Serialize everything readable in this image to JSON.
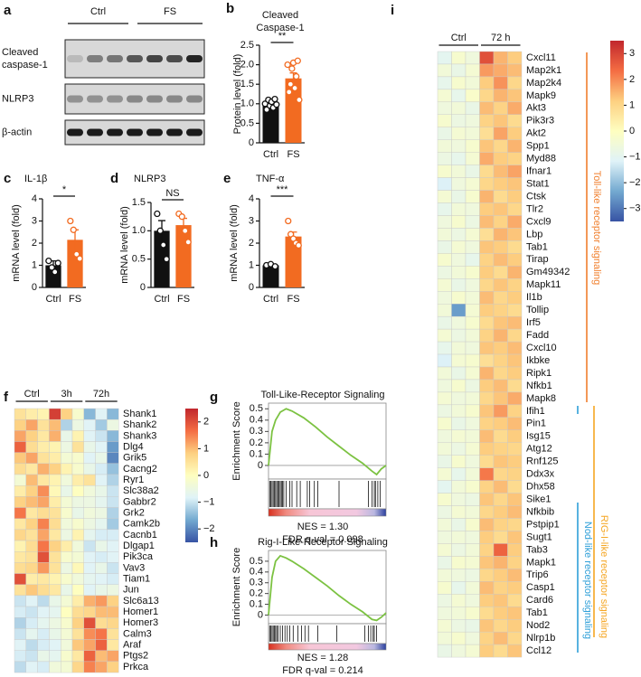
{
  "blot": {
    "label": "a",
    "groups": [
      "Ctrl",
      "FS"
    ],
    "rows": [
      [
        "Cleaved",
        "caspase-1"
      ],
      [
        "NLRP3"
      ],
      [
        "β-actin"
      ]
    ]
  },
  "chart_data": [
    {
      "type": "bar",
      "label": "b",
      "title": [
        "Cleaved",
        "Caspase-1"
      ],
      "ylabel": "Protein level (fold)",
      "categories": [
        "Ctrl",
        "FS"
      ],
      "values": [
        1.0,
        1.65
      ],
      "errors": [
        0.06,
        0.14
      ],
      "colors": [
        "#111111",
        "#f26b21"
      ],
      "points": [
        [
          1.0,
          0.85,
          1.1,
          0.95,
          1.05,
          0.9,
          1.12,
          0.98
        ],
        [
          2.0,
          1.3,
          1.5,
          1.9,
          2.05,
          1.4,
          1.7,
          2.1,
          1.1
        ]
      ],
      "ylim": [
        0,
        2.5
      ],
      "yticks": [
        0,
        0.5,
        {
          "value": 1,
          "label": "1.0"
        },
        1.5,
        {
          "value": 2,
          "label": "2.0"
        },
        2.5
      ],
      "significance": "**"
    },
    {
      "type": "bar",
      "label": "c",
      "title": [
        "IL-1β"
      ],
      "ylabel": "mRNA level (fold)",
      "categories": [
        "Ctrl",
        "FS"
      ],
      "values": [
        1.0,
        2.15
      ],
      "errors": [
        0.2,
        0.45
      ],
      "colors": [
        "#111111",
        "#f26b21"
      ],
      "points": [
        [
          1.2,
          0.9,
          0.7,
          1.1
        ],
        [
          3.0,
          2.6,
          1.5,
          1.3
        ]
      ],
      "ylim": [
        0,
        4
      ],
      "yticks": [
        0,
        1,
        2,
        3,
        4
      ],
      "significance": "*"
    },
    {
      "type": "bar",
      "label": "d",
      "title": [
        "NLRP3"
      ],
      "ylabel": "mRNA level (fold)",
      "categories": [
        "Ctrl",
        "FS"
      ],
      "values": [
        1.0,
        1.1
      ],
      "errors": [
        0.18,
        0.12
      ],
      "colors": [
        "#111111",
        "#f26b21"
      ],
      "points": [
        [
          1.3,
          1.0,
          0.75,
          0.5
        ],
        [
          1.3,
          1.25,
          1.0,
          0.8
        ]
      ],
      "ylim": [
        0,
        1.5
      ],
      "yticks": [
        0,
        0.5,
        {
          "value": 1,
          "label": "1.0"
        },
        1.5
      ],
      "significance": "NS"
    },
    {
      "type": "bar",
      "label": "e",
      "title": [
        "TNF-α"
      ],
      "ylabel": "mRNA level (fold)",
      "categories": [
        "Ctrl",
        "FS"
      ],
      "values": [
        1.0,
        2.3
      ],
      "errors": [
        0.05,
        0.2
      ],
      "colors": [
        "#111111",
        "#f26b21"
      ],
      "points": [
        [
          1.0,
          1.05,
          0.95
        ],
        [
          3.0,
          2.4,
          2.2,
          2.0,
          1.9
        ]
      ],
      "ylim": [
        0,
        4
      ],
      "yticks": [
        0,
        1,
        2,
        3,
        4
      ],
      "significance": "***"
    },
    {
      "type": "heatmap",
      "label": "f",
      "groups": [
        {
          "name": "Ctrl",
          "n": 3
        },
        {
          "name": "3h",
          "n": 3
        },
        {
          "name": "72h",
          "n": 3
        }
      ],
      "rows": [
        "Shank1",
        "Shank2",
        "Shank3",
        "Dlg4",
        "Grik5",
        "Cacng2",
        "Ryr1",
        "Slc38a2",
        "Gabbr2",
        "Grk2",
        "Camk2b",
        "Cacnb1",
        "Dlgap1",
        "Pik3ca",
        "Vav3",
        "Tiam1",
        "Jun",
        "Slc6a13",
        "Homer1",
        "Homer3",
        "Calm3",
        "Araf",
        "Ptgs2",
        "Prkca"
      ],
      "values": [
        [
          0.5,
          0.3,
          0.2,
          2.2,
          0.8,
          -0.2,
          -1.5,
          -0.8,
          -1.5
        ],
        [
          0.8,
          1.2,
          0.5,
          1.0,
          -1.2,
          -0.5,
          -0.8,
          -1.3,
          -0.5
        ],
        [
          1.2,
          0.8,
          0.4,
          1.1,
          -0.6,
          0.2,
          -0.8,
          -1.0,
          -1.5
        ],
        [
          1.8,
          0.6,
          0.3,
          0.2,
          -0.5,
          0.5,
          -0.6,
          -0.8,
          -1.8
        ],
        [
          0.9,
          1.2,
          0.5,
          0.3,
          -0.3,
          -0.2,
          -0.8,
          -0.6,
          -2.0
        ],
        [
          0.6,
          0.4,
          1.1,
          0.8,
          0.2,
          -0.2,
          -0.6,
          -0.9,
          -1.4
        ],
        [
          -0.3,
          1.0,
          0.4,
          0.2,
          -0.4,
          0.3,
          0.5,
          -0.8,
          -1.2
        ],
        [
          0.3,
          0.8,
          1.4,
          0.1,
          -0.6,
          0.0,
          -0.4,
          -0.6,
          -1.0
        ],
        [
          0.8,
          1.0,
          1.2,
          0.3,
          -0.3,
          -0.5,
          -0.5,
          -0.7,
          -1.0
        ],
        [
          1.6,
          0.4,
          0.6,
          0.5,
          -0.2,
          -0.6,
          -0.4,
          -0.5,
          -1.2
        ],
        [
          0.4,
          0.8,
          1.5,
          0.6,
          -0.4,
          -0.2,
          -0.5,
          -0.7,
          -1.3
        ],
        [
          0.7,
          0.5,
          1.2,
          0.4,
          -0.5,
          0.2,
          -0.7,
          -0.9,
          -0.9
        ],
        [
          0.2,
          0.6,
          1.6,
          0.8,
          0.3,
          -0.4,
          -1.0,
          -0.6,
          -0.8
        ],
        [
          0.4,
          0.5,
          2.0,
          0.5,
          -0.2,
          -0.3,
          -0.8,
          -0.9,
          -0.8
        ],
        [
          0.6,
          0.7,
          1.3,
          0.5,
          -0.5,
          0.1,
          -0.8,
          -0.6,
          -1.0
        ],
        [
          2.0,
          0.3,
          0.4,
          0.2,
          -0.2,
          -0.4,
          -0.7,
          -0.8,
          -0.9
        ],
        [
          0.5,
          0.9,
          0.6,
          0.4,
          -0.6,
          0.0,
          -0.8,
          -0.6,
          -0.5
        ],
        [
          -1.0,
          -0.8,
          -1.1,
          -0.6,
          -0.3,
          0.3,
          1.1,
          1.3,
          0.8
        ],
        [
          -0.9,
          -1.0,
          -0.8,
          -0.7,
          0.0,
          0.6,
          0.7,
          1.0,
          1.0
        ],
        [
          -1.2,
          -0.9,
          -0.7,
          -0.5,
          -0.2,
          0.8,
          2.0,
          0.6,
          0.7
        ],
        [
          -1.0,
          -0.7,
          -0.9,
          -0.6,
          -0.3,
          0.5,
          1.4,
          1.6,
          0.5
        ],
        [
          -0.8,
          -1.1,
          -0.9,
          -0.8,
          -0.4,
          0.9,
          1.2,
          1.8,
          0.4
        ],
        [
          -0.9,
          -1.0,
          -0.6,
          -0.7,
          -0.2,
          0.4,
          1.8,
          1.0,
          1.2
        ],
        [
          -1.1,
          -0.8,
          -0.9,
          -0.4,
          -0.3,
          0.7,
          1.5,
          1.2,
          0.8
        ]
      ],
      "clim": [
        -2.5,
        2.5
      ],
      "cticks": [
        2,
        1,
        0,
        {
          "value": -1,
          "label": "−1"
        },
        {
          "value": -2,
          "label": "−2"
        }
      ],
      "colormap": [
        "#3753a4",
        "#73a9d0",
        "#e0f3f8",
        "#fefec0",
        "#fdd081",
        "#f46d43",
        "#c1272d"
      ]
    },
    {
      "type": "gsea",
      "label": "g",
      "title": "Toll-Like-Receptor Signaling",
      "ylabel": "Enrichment Score",
      "x": [
        0,
        3,
        6,
        10,
        15,
        20,
        30,
        40,
        50,
        60,
        70,
        80,
        88,
        92,
        96,
        100
      ],
      "y": [
        0,
        0.3,
        0.4,
        0.47,
        0.5,
        0.48,
        0.42,
        0.34,
        0.25,
        0.17,
        0.09,
        0.02,
        -0.05,
        -0.08,
        -0.03,
        0.0
      ],
      "hits": [
        1,
        2,
        3,
        4,
        5,
        6,
        7,
        8,
        9,
        10,
        11,
        12,
        13,
        15,
        18,
        20,
        24,
        27,
        33,
        35,
        39,
        42,
        60,
        85,
        88,
        90,
        91,
        93,
        95
      ],
      "xlim": [
        0,
        100
      ],
      "ylim": [
        -0.12,
        0.55
      ],
      "yticks": [
        0,
        0.1,
        0.2,
        0.3,
        0.4,
        0.5
      ],
      "color": "#7cc242",
      "annotations": [
        "NES = 1.30",
        "FDR q-val = 0.098"
      ]
    },
    {
      "type": "gsea",
      "label": "h",
      "title": "Rig-I-Like-Receptor Signaling",
      "ylabel": "Enrichment Score",
      "x": [
        0,
        3,
        6,
        10,
        15,
        20,
        30,
        40,
        50,
        60,
        70,
        80,
        88,
        92,
        96,
        100
      ],
      "y": [
        0,
        0.35,
        0.5,
        0.55,
        0.53,
        0.5,
        0.43,
        0.35,
        0.27,
        0.18,
        0.1,
        0.03,
        -0.04,
        -0.05,
        -0.02,
        0.02
      ],
      "hits": [
        1,
        2,
        3,
        4,
        5,
        6,
        7,
        8,
        10,
        12,
        14,
        16,
        18,
        21,
        25,
        28,
        31,
        34,
        42,
        58,
        82,
        85,
        87,
        89,
        90,
        92
      ],
      "xlim": [
        0,
        100
      ],
      "ylim": [
        -0.08,
        0.6
      ],
      "yticks": [
        0,
        0.1,
        0.2,
        0.3,
        0.4,
        0.5
      ],
      "color": "#7cc242",
      "annotations": [
        "NES = 1.28",
        "FDR q-val = 0.214"
      ]
    },
    {
      "type": "heatmap",
      "label": "i",
      "groups": [
        {
          "name": "Ctrl",
          "n": 3
        },
        {
          "name": "72 h",
          "n": 3
        }
      ],
      "rows": [
        "Cxcl11",
        "Map2k1",
        "Map2k4",
        "Mapk9",
        "Akt3",
        "Pik3r3",
        "Akt2",
        "Spp1",
        "Myd88",
        "Ifnar1",
        "Stat1",
        "Ctsk",
        "Tlr2",
        "Cxcl9",
        "Lbp",
        "Tab1",
        "Tirap",
        "Gm49342",
        "Mapk11",
        "Il1b",
        "Tollip",
        "Irf5",
        "Fadd",
        "Cxcl10",
        "Ikbke",
        "Ripk1",
        "Nfkb1",
        "Mapk8",
        "Ifih1",
        "Pin1",
        "Isg15",
        "Atg12",
        "Rnf125",
        "Ddx3x",
        "Dhx58",
        "Sike1",
        "Nfkbib",
        "Pstpip1",
        "Sugt1",
        "Tab3",
        "Mapk1",
        "Trip6",
        "Casp1",
        "Card6",
        "Tab1",
        "Nod2",
        "Nlrp1b",
        "Ccl12"
      ],
      "values": [
        [
          -1.0,
          -0.3,
          -0.6,
          2.8,
          1.5,
          1.2
        ],
        [
          -0.5,
          -0.8,
          -0.4,
          1.8,
          1.6,
          1.4
        ],
        [
          -0.9,
          -0.3,
          -0.5,
          1.2,
          1.9,
          1.0
        ],
        [
          -0.4,
          -0.9,
          -0.2,
          1.0,
          1.5,
          1.3
        ],
        [
          -0.6,
          -0.5,
          -0.8,
          1.4,
          1.1,
          1.6
        ],
        [
          -0.3,
          -0.7,
          -0.6,
          1.1,
          1.3,
          0.9
        ],
        [
          -0.8,
          -0.4,
          -0.5,
          0.8,
          1.7,
          1.2
        ],
        [
          -0.5,
          -0.6,
          -0.3,
          1.3,
          1.0,
          1.5
        ],
        [
          -0.7,
          -0.9,
          -0.4,
          1.6,
          1.2,
          1.1
        ],
        [
          -0.3,
          -0.5,
          -0.8,
          0.9,
          1.4,
          1.7
        ],
        [
          -1.2,
          -0.6,
          -0.4,
          1.0,
          1.2,
          1.3
        ],
        [
          -0.4,
          -0.8,
          -0.3,
          1.5,
          0.9,
          1.2
        ],
        [
          -0.9,
          -0.5,
          -0.6,
          1.2,
          1.3,
          1.0
        ],
        [
          -0.6,
          -0.3,
          -0.7,
          1.4,
          1.1,
          1.6
        ],
        [
          -0.5,
          -0.7,
          -0.4,
          0.8,
          1.5,
          1.3
        ],
        [
          -0.8,
          -0.4,
          -0.6,
          1.3,
          1.2,
          0.9
        ],
        [
          -0.3,
          -0.6,
          -0.9,
          1.1,
          1.4,
          1.2
        ],
        [
          -0.7,
          -0.5,
          -0.3,
          1.2,
          0.9,
          1.5
        ],
        [
          -0.4,
          -0.8,
          -0.6,
          1.0,
          1.3,
          1.1
        ],
        [
          -0.6,
          -0.3,
          -0.5,
          1.4,
          1.0,
          1.2
        ],
        [
          -0.5,
          -2.5,
          -0.4,
          1.2,
          1.1,
          0.9
        ],
        [
          -0.8,
          -0.6,
          -0.3,
          0.9,
          1.3,
          1.4
        ],
        [
          -0.4,
          -0.7,
          -0.5,
          1.1,
          1.5,
          1.0
        ],
        [
          -0.9,
          -0.5,
          -0.6,
          1.3,
          1.2,
          1.4
        ],
        [
          -1.2,
          -0.4,
          -0.3,
          0.8,
          1.1,
          1.3
        ],
        [
          -0.5,
          -0.8,
          -0.4,
          1.5,
          1.0,
          1.2
        ],
        [
          -0.6,
          -0.3,
          -0.7,
          1.2,
          1.4,
          0.9
        ],
        [
          -0.4,
          -0.6,
          -0.5,
          1.0,
          1.3,
          1.6
        ],
        [
          -0.7,
          -0.5,
          -0.3,
          1.3,
          1.8,
          1.1
        ],
        [
          -0.3,
          -0.8,
          -0.6,
          1.1,
          1.2,
          1.4
        ],
        [
          -0.6,
          -0.4,
          -0.5,
          1.4,
          0.9,
          1.2
        ],
        [
          -0.5,
          -0.7,
          -0.4,
          1.2,
          1.1,
          1.0
        ],
        [
          -0.8,
          -0.3,
          -0.6,
          0.9,
          1.3,
          1.2
        ],
        [
          -0.4,
          -0.9,
          -0.5,
          2.2,
          1.0,
          1.1
        ],
        [
          -1.0,
          -0.5,
          -0.3,
          1.1,
          1.4,
          0.9
        ],
        [
          -0.3,
          -0.6,
          -0.7,
          1.3,
          1.0,
          1.3
        ],
        [
          -0.7,
          -0.4,
          -0.5,
          1.0,
          1.2,
          1.4
        ],
        [
          -0.5,
          -0.8,
          -0.3,
          1.4,
          1.1,
          1.0
        ],
        [
          -0.6,
          -0.5,
          -0.6,
          1.2,
          0.9,
          1.3
        ],
        [
          -0.4,
          -0.7,
          -0.5,
          1.1,
          2.5,
          1.2
        ],
        [
          -0.8,
          -0.3,
          -0.4,
          1.3,
          1.5,
          1.1
        ],
        [
          -0.5,
          -0.6,
          -0.7,
          1.0,
          1.2,
          1.4
        ],
        [
          -0.3,
          -0.9,
          -0.5,
          1.4,
          1.1,
          1.2
        ],
        [
          -0.7,
          -0.4,
          -0.6,
          1.2,
          1.3,
          0.9
        ],
        [
          -0.6,
          -0.5,
          -0.3,
          0.9,
          1.2,
          1.3
        ],
        [
          -0.4,
          -0.7,
          -0.8,
          1.3,
          1.0,
          1.2
        ],
        [
          -0.5,
          -0.3,
          -0.6,
          1.1,
          1.4,
          1.0
        ],
        [
          -0.8,
          -0.6,
          -0.4,
          1.2,
          0.9,
          1.3
        ]
      ],
      "clim": [
        -3.5,
        3.5
      ],
      "cticks": [
        3,
        2,
        1,
        0,
        {
          "value": -1,
          "label": "−1"
        },
        {
          "value": -2,
          "label": "−2"
        },
        {
          "value": -3,
          "label": "−3"
        }
      ],
      "colormap": [
        "#3753a4",
        "#73a9d0",
        "#e0f3f8",
        "#fefec0",
        "#fdd081",
        "#f46d43",
        "#c1272d"
      ],
      "pathways": [
        {
          "name": "Toll-like receptor signaling",
          "color": "#f07f2d"
        },
        {
          "name": "RIG-I-like receptor signaling",
          "color": "#f5a623"
        },
        {
          "name": "Nod-like receptor signaling",
          "color": "#2e9fd8"
        }
      ]
    }
  ]
}
